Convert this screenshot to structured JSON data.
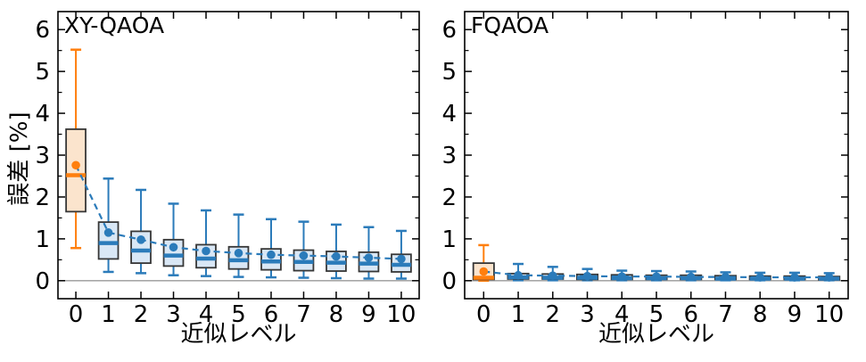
{
  "figure": {
    "background": "#ffffff"
  },
  "colors": {
    "orange": "#ff7f0e",
    "orange_fill": "#fbe4cd",
    "blue": "#2b7bba",
    "blue_fill": "#d9e7f5",
    "box_edge": "#373737",
    "zero_line": "#9a9a9a",
    "axis": "#000000"
  },
  "chart_data": [
    {
      "type": "boxplot",
      "title": "XY-QAOA",
      "xlabel": "近似レベル",
      "ylabel": "誤差 [%]",
      "categories": [
        0,
        1,
        2,
        3,
        4,
        5,
        6,
        7,
        8,
        9,
        10
      ],
      "yticks": [
        0,
        1,
        2,
        3,
        4,
        5,
        6
      ],
      "yticks_minor": [
        0.5,
        1.5,
        2.5,
        3.5,
        4.5,
        5.5
      ],
      "ylim": [
        -0.43,
        6.43
      ],
      "xlim": [
        -0.55,
        10.55
      ],
      "grid": false,
      "zero_line": true,
      "legend": "none",
      "mean_line_style": "dashed",
      "boxes": [
        {
          "x": 0,
          "whislo": 0.78,
          "q1": 1.65,
          "med": 2.52,
          "mean": 2.76,
          "q3": 3.62,
          "whishi": 5.52,
          "color": "orange"
        },
        {
          "x": 1,
          "whislo": 0.21,
          "q1": 0.52,
          "med": 0.9,
          "mean": 1.15,
          "q3": 1.4,
          "whishi": 2.44,
          "color": "blue"
        },
        {
          "x": 2,
          "whislo": 0.18,
          "q1": 0.42,
          "med": 0.72,
          "mean": 0.98,
          "q3": 1.18,
          "whishi": 2.17,
          "color": "blue"
        },
        {
          "x": 3,
          "whislo": 0.13,
          "q1": 0.35,
          "med": 0.6,
          "mean": 0.8,
          "q3": 0.98,
          "whishi": 1.84,
          "color": "blue"
        },
        {
          "x": 4,
          "whislo": 0.11,
          "q1": 0.31,
          "med": 0.53,
          "mean": 0.71,
          "q3": 0.86,
          "whishi": 1.68,
          "color": "blue"
        },
        {
          "x": 5,
          "whislo": 0.09,
          "q1": 0.28,
          "med": 0.49,
          "mean": 0.66,
          "q3": 0.81,
          "whishi": 1.58,
          "color": "blue"
        },
        {
          "x": 6,
          "whislo": 0.08,
          "q1": 0.26,
          "med": 0.46,
          "mean": 0.62,
          "q3": 0.76,
          "whishi": 1.47,
          "color": "blue"
        },
        {
          "x": 7,
          "whislo": 0.07,
          "q1": 0.24,
          "med": 0.45,
          "mean": 0.6,
          "q3": 0.73,
          "whishi": 1.41,
          "color": "blue"
        },
        {
          "x": 8,
          "whislo": 0.06,
          "q1": 0.23,
          "med": 0.43,
          "mean": 0.58,
          "q3": 0.7,
          "whishi": 1.34,
          "color": "blue"
        },
        {
          "x": 9,
          "whislo": 0.05,
          "q1": 0.22,
          "med": 0.41,
          "mean": 0.55,
          "q3": 0.68,
          "whishi": 1.28,
          "color": "blue"
        },
        {
          "x": 10,
          "whislo": 0.05,
          "q1": 0.21,
          "med": 0.38,
          "mean": 0.52,
          "q3": 0.63,
          "whishi": 1.19,
          "color": "blue"
        }
      ]
    },
    {
      "type": "boxplot",
      "title": "FQAOA",
      "xlabel": "近似レベル",
      "ylabel": "",
      "categories": [
        0,
        1,
        2,
        3,
        4,
        5,
        6,
        7,
        8,
        9,
        10
      ],
      "yticks": [
        0,
        1,
        2,
        3,
        4,
        5,
        6
      ],
      "yticks_minor": [
        0.5,
        1.5,
        2.5,
        3.5,
        4.5,
        5.5
      ],
      "ylim": [
        -0.43,
        6.43
      ],
      "xlim": [
        -0.55,
        10.55
      ],
      "grid": false,
      "zero_line": true,
      "legend": "none",
      "mean_line_style": "dashed",
      "boxes": [
        {
          "x": 0,
          "whislo": 0.0,
          "q1": 0.03,
          "med": 0.07,
          "mean": 0.22,
          "q3": 0.42,
          "whishi": 0.85,
          "color": "orange"
        },
        {
          "x": 1,
          "whislo": 0.01,
          "q1": 0.04,
          "med": 0.08,
          "mean": 0.13,
          "q3": 0.17,
          "whishi": 0.4,
          "color": "blue"
        },
        {
          "x": 2,
          "whislo": 0.01,
          "q1": 0.04,
          "med": 0.07,
          "mean": 0.12,
          "q3": 0.16,
          "whishi": 0.33,
          "color": "blue"
        },
        {
          "x": 3,
          "whislo": 0.01,
          "q1": 0.03,
          "med": 0.07,
          "mean": 0.11,
          "q3": 0.15,
          "whishi": 0.28,
          "color": "blue"
        },
        {
          "x": 4,
          "whislo": 0.01,
          "q1": 0.03,
          "med": 0.06,
          "mean": 0.1,
          "q3": 0.14,
          "whishi": 0.24,
          "color": "blue"
        },
        {
          "x": 5,
          "whislo": 0.01,
          "q1": 0.03,
          "med": 0.06,
          "mean": 0.1,
          "q3": 0.13,
          "whishi": 0.23,
          "color": "blue"
        },
        {
          "x": 6,
          "whislo": 0.01,
          "q1": 0.03,
          "med": 0.06,
          "mean": 0.09,
          "q3": 0.13,
          "whishi": 0.22,
          "color": "blue"
        },
        {
          "x": 7,
          "whislo": 0.01,
          "q1": 0.03,
          "med": 0.05,
          "mean": 0.09,
          "q3": 0.12,
          "whishi": 0.2,
          "color": "blue"
        },
        {
          "x": 8,
          "whislo": 0.01,
          "q1": 0.03,
          "med": 0.05,
          "mean": 0.08,
          "q3": 0.11,
          "whishi": 0.19,
          "color": "blue"
        },
        {
          "x": 9,
          "whislo": 0.01,
          "q1": 0.03,
          "med": 0.05,
          "mean": 0.08,
          "q3": 0.11,
          "whishi": 0.19,
          "color": "blue"
        },
        {
          "x": 10,
          "whislo": 0.01,
          "q1": 0.02,
          "med": 0.05,
          "mean": 0.08,
          "q3": 0.1,
          "whishi": 0.18,
          "color": "blue"
        }
      ]
    }
  ]
}
